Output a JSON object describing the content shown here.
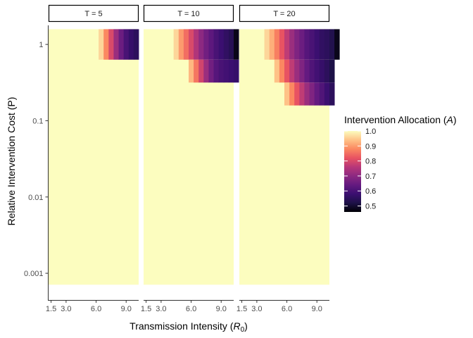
{
  "chart_data": {
    "type": "heatmap",
    "xlabel_text": "Transmission Intensity (",
    "xlabel_symbol": "R",
    "xlabel_sub": "0",
    "xlabel_close": ")",
    "ylabel": "Relative Intervention Cost (P)",
    "x_ticks": [
      "1.5",
      "3.0",
      "6.0",
      "9.0"
    ],
    "x_tick_values": [
      1.5,
      3.0,
      6.0,
      9.0
    ],
    "xlim": [
      1.25,
      10.25
    ],
    "x_cell_min": 1.5,
    "x_cell_max": 10.0,
    "x_cell_step": 0.5,
    "y_scale": "log10",
    "y_ticks": [
      "1",
      "0.1",
      "0.01",
      "0.001"
    ],
    "y_tick_values": [
      1,
      0.1,
      0.01,
      0.001
    ],
    "ylim_log10": [
      -3.35,
      0.25
    ],
    "y_cell_min_log10": -3.15,
    "y_cell_max_log10": 0.2,
    "legend": {
      "title_text": "Intervention Allocation (",
      "title_symbol": "A",
      "title_close": ")",
      "labels": [
        "1.0",
        "0.9",
        "0.8",
        "0.7",
        "0.6",
        "0.5"
      ],
      "values": [
        1.0,
        0.9,
        0.8,
        0.7,
        0.6,
        0.5
      ],
      "min": 0.46,
      "max": 1.0
    },
    "panels": [
      {
        "label": "T = 5",
        "blocks": [
          {
            "p_log10_min": -0.2,
            "p_log10_max": 0.2,
            "x_start": 6.5,
            "values": [
              0.96,
              0.88,
              0.8,
              0.72,
              0.65,
              0.6,
              0.57,
              0.55
            ]
          }
        ]
      },
      {
        "label": "T = 10",
        "blocks": [
          {
            "p_log10_min": -0.2,
            "p_log10_max": 0.2,
            "x_start": 4.5,
            "values": [
              0.96,
              0.9,
              0.85,
              0.8,
              0.75,
              0.7,
              0.66,
              0.63,
              0.6,
              0.58,
              0.56,
              0.54,
              0.48
            ]
          },
          {
            "p_log10_min": -0.5,
            "p_log10_max": -0.2,
            "x_start": 6.0,
            "values": [
              0.93,
              0.86,
              0.79,
              0.72,
              0.66,
              0.62,
              0.6,
              0.59,
              0.58,
              0.57
            ]
          }
        ]
      },
      {
        "label": "T = 20",
        "blocks": [
          {
            "p_log10_min": -0.2,
            "p_log10_max": 0.2,
            "x_start": 4.0,
            "values": [
              0.96,
              0.92,
              0.87,
              0.82,
              0.77,
              0.72,
              0.68,
              0.65,
              0.62,
              0.6,
              0.58,
              0.56,
              0.55,
              0.53,
              0.48
            ]
          },
          {
            "p_log10_min": -0.5,
            "p_log10_max": -0.2,
            "x_start": 5.0,
            "values": [
              0.94,
              0.88,
              0.82,
              0.77,
              0.72,
              0.68,
              0.64,
              0.61,
              0.59,
              0.57,
              0.55,
              0.52
            ]
          },
          {
            "p_log10_min": -0.8,
            "p_log10_max": -0.5,
            "x_start": 6.0,
            "values": [
              0.94,
              0.88,
              0.82,
              0.77,
              0.72,
              0.68,
              0.64,
              0.61,
              0.58,
              0.55
            ]
          }
        ]
      }
    ],
    "colors": {
      "palette": [
        "#FCFDBF",
        "#FEC287",
        "#FB8861",
        "#E85362",
        "#B73779",
        "#8C2981",
        "#641A80",
        "#3B0F70",
        "#1D1147",
        "#000004"
      ],
      "axis": "#333333",
      "tick_text": "#4D4D4D",
      "strip_fill": "#FFFFFF",
      "strip_border": "#000000"
    }
  }
}
